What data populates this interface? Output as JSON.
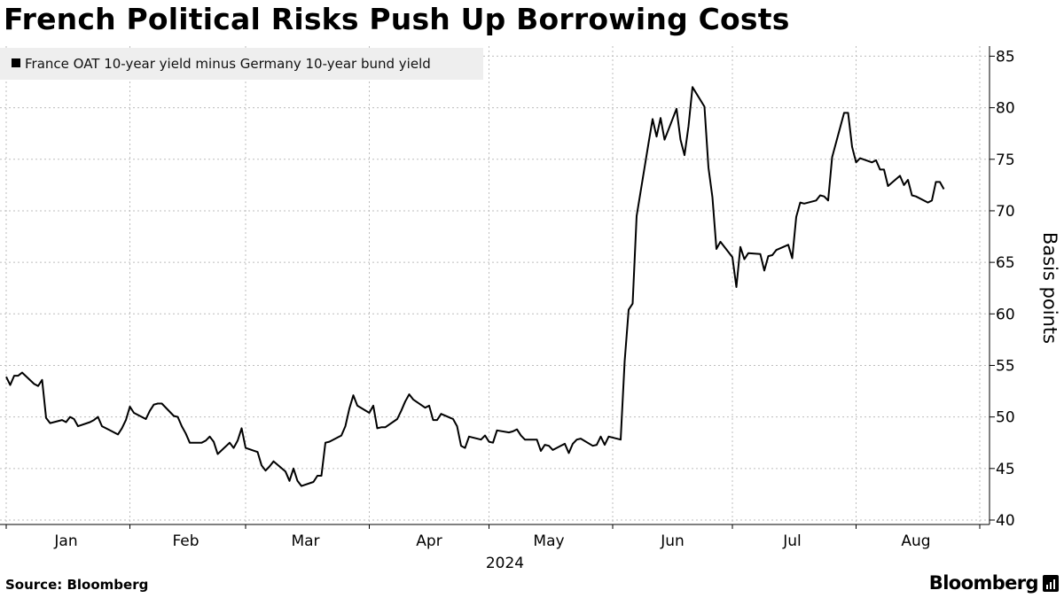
{
  "header": {
    "title": "French Political Risks Push Up Borrowing Costs"
  },
  "footer": {
    "source": "Source: Bloomberg",
    "brand": "Bloomberg",
    "brand_icon": "bloomberg-chart-icon"
  },
  "colors": {
    "line": "#000000",
    "grid": "#bdbdbd",
    "legend_bg": "#eeeeee",
    "background": "#ffffff"
  },
  "chart_data": {
    "type": "line",
    "title": "French Political Risks Push Up Borrowing Costs",
    "ylabel": "Basis points",
    "xlabel": "2024",
    "year": "2024",
    "ylim": [
      40,
      85
    ],
    "xlim": [
      "2024-01-01",
      "2024-09-01"
    ],
    "yticks": [
      40,
      45,
      50,
      55,
      60,
      65,
      70,
      75,
      80,
      85
    ],
    "xticks": [
      "2024-01-01",
      "2024-02-01",
      "2024-03-01",
      "2024-04-01",
      "2024-05-01",
      "2024-06-01",
      "2024-07-01",
      "2024-08-01",
      "2024-09-01"
    ],
    "month_labels": [
      {
        "label": "Jan",
        "date": "2024-01-16"
      },
      {
        "label": "Feb",
        "date": "2024-02-15"
      },
      {
        "label": "Mar",
        "date": "2024-03-16"
      },
      {
        "label": "Apr",
        "date": "2024-04-16"
      },
      {
        "label": "May",
        "date": "2024-05-16"
      },
      {
        "label": "Jun",
        "date": "2024-06-16"
      },
      {
        "label": "Jul",
        "date": "2024-07-16"
      },
      {
        "label": "Aug",
        "date": "2024-08-16"
      }
    ],
    "grid": true,
    "y_axis_side": "right",
    "legend_position": "top-left",
    "series": [
      {
        "name": "France OAT 10-year yield minus Germany 10-year bund yield",
        "points": [
          [
            "2024-01-01",
            53.9
          ],
          [
            "2024-01-02",
            53.1
          ],
          [
            "2024-01-03",
            54.0
          ],
          [
            "2024-01-04",
            54.0
          ],
          [
            "2024-01-05",
            54.3
          ],
          [
            "2024-01-08",
            53.2
          ],
          [
            "2024-01-09",
            53.0
          ],
          [
            "2024-01-10",
            53.6
          ],
          [
            "2024-01-11",
            49.9
          ],
          [
            "2024-01-12",
            49.4
          ],
          [
            "2024-01-15",
            49.7
          ],
          [
            "2024-01-16",
            49.5
          ],
          [
            "2024-01-17",
            50.0
          ],
          [
            "2024-01-18",
            49.8
          ],
          [
            "2024-01-19",
            49.1
          ],
          [
            "2024-01-22",
            49.5
          ],
          [
            "2024-01-23",
            49.7
          ],
          [
            "2024-01-24",
            50.0
          ],
          [
            "2024-01-25",
            49.1
          ],
          [
            "2024-01-26",
            48.9
          ],
          [
            "2024-01-29",
            48.3
          ],
          [
            "2024-01-30",
            48.9
          ],
          [
            "2024-01-31",
            49.7
          ],
          [
            "2024-02-01",
            51.0
          ],
          [
            "2024-02-02",
            50.4
          ],
          [
            "2024-02-05",
            49.8
          ],
          [
            "2024-02-06",
            50.6
          ],
          [
            "2024-02-07",
            51.2
          ],
          [
            "2024-02-08",
            51.3
          ],
          [
            "2024-02-09",
            51.3
          ],
          [
            "2024-02-12",
            50.1
          ],
          [
            "2024-02-13",
            50.0
          ],
          [
            "2024-02-14",
            49.1
          ],
          [
            "2024-02-15",
            48.4
          ],
          [
            "2024-02-16",
            47.5
          ],
          [
            "2024-02-19",
            47.5
          ],
          [
            "2024-02-20",
            47.7
          ],
          [
            "2024-02-21",
            48.1
          ],
          [
            "2024-02-22",
            47.6
          ],
          [
            "2024-02-23",
            46.4
          ],
          [
            "2024-02-26",
            47.5
          ],
          [
            "2024-02-27",
            47.0
          ],
          [
            "2024-02-28",
            47.7
          ],
          [
            "2024-02-29",
            48.9
          ],
          [
            "2024-03-01",
            47.0
          ],
          [
            "2024-03-04",
            46.6
          ],
          [
            "2024-03-05",
            45.3
          ],
          [
            "2024-03-06",
            44.8
          ],
          [
            "2024-03-07",
            45.2
          ],
          [
            "2024-03-08",
            45.7
          ],
          [
            "2024-03-11",
            44.7
          ],
          [
            "2024-03-12",
            43.8
          ],
          [
            "2024-03-13",
            45.0
          ],
          [
            "2024-03-14",
            43.8
          ],
          [
            "2024-03-15",
            43.3
          ],
          [
            "2024-03-18",
            43.7
          ],
          [
            "2024-03-19",
            44.3
          ],
          [
            "2024-03-20",
            44.3
          ],
          [
            "2024-03-21",
            47.5
          ],
          [
            "2024-03-22",
            47.6
          ],
          [
            "2024-03-25",
            48.2
          ],
          [
            "2024-03-26",
            49.1
          ],
          [
            "2024-03-27",
            50.8
          ],
          [
            "2024-03-28",
            52.1
          ],
          [
            "2024-03-29",
            51.1
          ],
          [
            "2024-04-01",
            50.4
          ],
          [
            "2024-04-02",
            51.1
          ],
          [
            "2024-04-03",
            48.9
          ],
          [
            "2024-04-04",
            49.0
          ],
          [
            "2024-04-05",
            49.0
          ],
          [
            "2024-04-08",
            49.8
          ],
          [
            "2024-04-09",
            50.6
          ],
          [
            "2024-04-10",
            51.5
          ],
          [
            "2024-04-11",
            52.2
          ],
          [
            "2024-04-12",
            51.7
          ],
          [
            "2024-04-15",
            50.9
          ],
          [
            "2024-04-16",
            51.1
          ],
          [
            "2024-04-17",
            49.7
          ],
          [
            "2024-04-18",
            49.7
          ],
          [
            "2024-04-19",
            50.3
          ],
          [
            "2024-04-22",
            49.8
          ],
          [
            "2024-04-23",
            49.1
          ],
          [
            "2024-04-24",
            47.2
          ],
          [
            "2024-04-25",
            47.0
          ],
          [
            "2024-04-26",
            48.1
          ],
          [
            "2024-04-29",
            47.8
          ],
          [
            "2024-04-30",
            48.2
          ],
          [
            "2024-05-01",
            47.6
          ],
          [
            "2024-05-02",
            47.5
          ],
          [
            "2024-05-03",
            48.7
          ],
          [
            "2024-05-06",
            48.5
          ],
          [
            "2024-05-07",
            48.6
          ],
          [
            "2024-05-08",
            48.8
          ],
          [
            "2024-05-09",
            48.2
          ],
          [
            "2024-05-10",
            47.8
          ],
          [
            "2024-05-13",
            47.8
          ],
          [
            "2024-05-14",
            46.7
          ],
          [
            "2024-05-15",
            47.3
          ],
          [
            "2024-05-16",
            47.2
          ],
          [
            "2024-05-17",
            46.8
          ],
          [
            "2024-05-20",
            47.4
          ],
          [
            "2024-05-21",
            46.5
          ],
          [
            "2024-05-22",
            47.4
          ],
          [
            "2024-05-23",
            47.8
          ],
          [
            "2024-05-24",
            47.9
          ],
          [
            "2024-05-27",
            47.2
          ],
          [
            "2024-05-28",
            47.3
          ],
          [
            "2024-05-29",
            48.1
          ],
          [
            "2024-05-30",
            47.3
          ],
          [
            "2024-05-31",
            48.1
          ],
          [
            "2024-06-03",
            47.8
          ],
          [
            "2024-06-04",
            55.4
          ],
          [
            "2024-06-05",
            60.4
          ],
          [
            "2024-06-06",
            61.0
          ],
          [
            "2024-06-07",
            69.5
          ],
          [
            "2024-06-10",
            76.6
          ],
          [
            "2024-06-11",
            78.9
          ],
          [
            "2024-06-12",
            77.2
          ],
          [
            "2024-06-13",
            79.0
          ],
          [
            "2024-06-14",
            76.9
          ],
          [
            "2024-06-17",
            79.9
          ],
          [
            "2024-06-18",
            76.9
          ],
          [
            "2024-06-19",
            75.4
          ],
          [
            "2024-06-20",
            78.2
          ],
          [
            "2024-06-21",
            82.0
          ],
          [
            "2024-06-24",
            80.1
          ],
          [
            "2024-06-25",
            74.2
          ],
          [
            "2024-06-26",
            71.3
          ],
          [
            "2024-06-27",
            66.3
          ],
          [
            "2024-06-28",
            67.0
          ],
          [
            "2024-07-01",
            65.5
          ],
          [
            "2024-07-02",
            62.6
          ],
          [
            "2024-07-03",
            66.5
          ],
          [
            "2024-07-04",
            65.3
          ],
          [
            "2024-07-05",
            65.9
          ],
          [
            "2024-07-08",
            65.8
          ],
          [
            "2024-07-09",
            64.2
          ],
          [
            "2024-07-10",
            65.6
          ],
          [
            "2024-07-11",
            65.7
          ],
          [
            "2024-07-12",
            66.2
          ],
          [
            "2024-07-15",
            66.7
          ],
          [
            "2024-07-16",
            65.4
          ],
          [
            "2024-07-17",
            69.4
          ],
          [
            "2024-07-18",
            70.8
          ],
          [
            "2024-07-19",
            70.7
          ],
          [
            "2024-07-22",
            71.0
          ],
          [
            "2024-07-23",
            71.5
          ],
          [
            "2024-07-24",
            71.4
          ],
          [
            "2024-07-25",
            71.0
          ],
          [
            "2024-07-26",
            75.2
          ],
          [
            "2024-07-29",
            79.5
          ],
          [
            "2024-07-30",
            79.5
          ],
          [
            "2024-07-31",
            76.2
          ],
          [
            "2024-08-01",
            74.7
          ],
          [
            "2024-08-02",
            75.1
          ],
          [
            "2024-08-05",
            74.7
          ],
          [
            "2024-08-06",
            74.9
          ],
          [
            "2024-08-07",
            74.0
          ],
          [
            "2024-08-08",
            74.0
          ],
          [
            "2024-08-09",
            72.4
          ],
          [
            "2024-08-12",
            73.4
          ],
          [
            "2024-08-13",
            72.5
          ],
          [
            "2024-08-14",
            73.0
          ],
          [
            "2024-08-15",
            71.5
          ],
          [
            "2024-08-16",
            71.4
          ],
          [
            "2024-08-19",
            70.8
          ],
          [
            "2024-08-20",
            71.0
          ],
          [
            "2024-08-21",
            72.8
          ],
          [
            "2024-08-22",
            72.8
          ],
          [
            "2024-08-23",
            72.1
          ]
        ]
      }
    ]
  }
}
